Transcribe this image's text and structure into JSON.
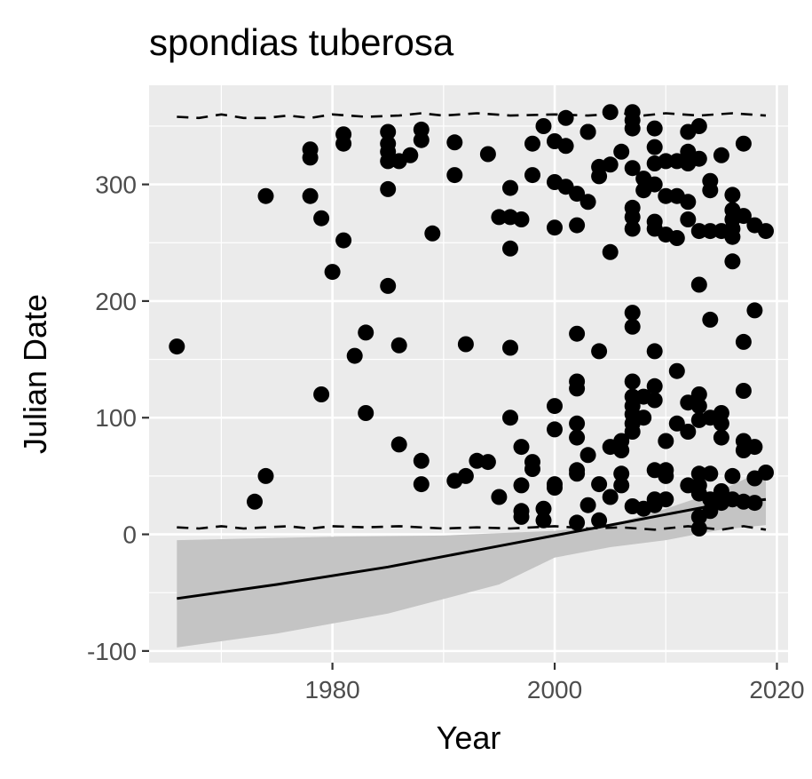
{
  "chart_data": {
    "type": "scatter",
    "title": "spondias tuberosa",
    "xlabel": "Year",
    "ylabel": "Julian Date",
    "xlim": [
      1963.5,
      2021
    ],
    "ylim": [
      -110,
      385
    ],
    "x_ticks": [
      1980,
      2000,
      2020
    ],
    "x_tick_labels": [
      "1980",
      "2000",
      "2020"
    ],
    "y_ticks": [
      -100,
      0,
      100,
      200,
      300
    ],
    "y_tick_labels": [
      "-100",
      "0",
      "100",
      "200",
      "300"
    ],
    "grid": true,
    "colors": {
      "panel": "#ebebeb",
      "grid": "#ffffff",
      "points": "#000000",
      "ribbon": "#c4c4c4",
      "line": "#000000"
    },
    "points": [
      [
        1966,
        161
      ],
      [
        1973,
        28
      ],
      [
        1974,
        50
      ],
      [
        1974,
        290
      ],
      [
        1978,
        323
      ],
      [
        1978,
        330
      ],
      [
        1978,
        290
      ],
      [
        1979,
        271
      ],
      [
        1979,
        120
      ],
      [
        1980,
        225
      ],
      [
        1981,
        252
      ],
      [
        1981,
        335
      ],
      [
        1981,
        343
      ],
      [
        1982,
        153
      ],
      [
        1983,
        173
      ],
      [
        1983,
        104
      ],
      [
        1985,
        345
      ],
      [
        1985,
        335
      ],
      [
        1985,
        328
      ],
      [
        1985,
        320
      ],
      [
        1985,
        296
      ],
      [
        1985,
        213
      ],
      [
        1986,
        320
      ],
      [
        1986,
        162
      ],
      [
        1986,
        77
      ],
      [
        1987,
        325
      ],
      [
        1988,
        347
      ],
      [
        1988,
        338
      ],
      [
        1988,
        63
      ],
      [
        1988,
        43
      ],
      [
        1989,
        258
      ],
      [
        1991,
        336
      ],
      [
        1991,
        308
      ],
      [
        1991,
        46
      ],
      [
        1992,
        163
      ],
      [
        1992,
        50
      ],
      [
        1993,
        63
      ],
      [
        1994,
        62
      ],
      [
        1994,
        326
      ],
      [
        1995,
        272
      ],
      [
        1995,
        32
      ],
      [
        1996,
        297
      ],
      [
        1996,
        272
      ],
      [
        1996,
        245
      ],
      [
        1996,
        160
      ],
      [
        1996,
        100
      ],
      [
        1997,
        270
      ],
      [
        1997,
        75
      ],
      [
        1997,
        42
      ],
      [
        1997,
        20
      ],
      [
        1997,
        15
      ],
      [
        1998,
        335
      ],
      [
        1998,
        308
      ],
      [
        1998,
        62
      ],
      [
        1998,
        56
      ],
      [
        1999,
        350
      ],
      [
        1999,
        22
      ],
      [
        1999,
        12
      ],
      [
        2000,
        337
      ],
      [
        2000,
        302
      ],
      [
        2000,
        263
      ],
      [
        2000,
        110
      ],
      [
        2000,
        90
      ],
      [
        2000,
        43
      ],
      [
        2000,
        40
      ],
      [
        2001,
        357
      ],
      [
        2001,
        333
      ],
      [
        2001,
        298
      ],
      [
        2002,
        292
      ],
      [
        2002,
        265
      ],
      [
        2002,
        172
      ],
      [
        2002,
        131
      ],
      [
        2002,
        125
      ],
      [
        2002,
        95
      ],
      [
        2002,
        83
      ],
      [
        2002,
        55
      ],
      [
        2002,
        52
      ],
      [
        2002,
        10
      ],
      [
        2003,
        345
      ],
      [
        2003,
        345
      ],
      [
        2003,
        285
      ],
      [
        2003,
        68
      ],
      [
        2003,
        25
      ],
      [
        2004,
        315
      ],
      [
        2004,
        307
      ],
      [
        2004,
        157
      ],
      [
        2004,
        43
      ],
      [
        2004,
        12
      ],
      [
        2005,
        362
      ],
      [
        2005,
        317
      ],
      [
        2005,
        242
      ],
      [
        2005,
        75
      ],
      [
        2005,
        32
      ],
      [
        2006,
        328
      ],
      [
        2006,
        80
      ],
      [
        2006,
        72
      ],
      [
        2006,
        52
      ],
      [
        2006,
        42
      ],
      [
        2007,
        362
      ],
      [
        2007,
        355
      ],
      [
        2007,
        348
      ],
      [
        2007,
        314
      ],
      [
        2007,
        280
      ],
      [
        2007,
        272
      ],
      [
        2007,
        262
      ],
      [
        2007,
        190
      ],
      [
        2007,
        178
      ],
      [
        2007,
        131
      ],
      [
        2007,
        118
      ],
      [
        2007,
        110
      ],
      [
        2007,
        103
      ],
      [
        2007,
        95
      ],
      [
        2007,
        88
      ],
      [
        2007,
        24
      ],
      [
        2008,
        305
      ],
      [
        2008,
        295
      ],
      [
        2008,
        118
      ],
      [
        2008,
        100
      ],
      [
        2008,
        22
      ],
      [
        2009,
        348
      ],
      [
        2009,
        332
      ],
      [
        2009,
        318
      ],
      [
        2009,
        300
      ],
      [
        2009,
        268
      ],
      [
        2009,
        262
      ],
      [
        2009,
        157
      ],
      [
        2009,
        127
      ],
      [
        2009,
        115
      ],
      [
        2009,
        55
      ],
      [
        2009,
        30
      ],
      [
        2009,
        25
      ],
      [
        2010,
        320
      ],
      [
        2010,
        290
      ],
      [
        2010,
        257
      ],
      [
        2010,
        80
      ],
      [
        2010,
        55
      ],
      [
        2010,
        50
      ],
      [
        2010,
        30
      ],
      [
        2011,
        320
      ],
      [
        2011,
        290
      ],
      [
        2011,
        254
      ],
      [
        2011,
        140
      ],
      [
        2011,
        95
      ],
      [
        2012,
        345
      ],
      [
        2012,
        328
      ],
      [
        2012,
        318
      ],
      [
        2012,
        285
      ],
      [
        2012,
        270
      ],
      [
        2012,
        113
      ],
      [
        2012,
        88
      ],
      [
        2012,
        42
      ],
      [
        2013,
        350
      ],
      [
        2013,
        322
      ],
      [
        2013,
        260
      ],
      [
        2013,
        214
      ],
      [
        2013,
        120
      ],
      [
        2013,
        110
      ],
      [
        2013,
        98
      ],
      [
        2013,
        52
      ],
      [
        2013,
        42
      ],
      [
        2013,
        35
      ],
      [
        2013,
        15
      ],
      [
        2013,
        5
      ],
      [
        2014,
        303
      ],
      [
        2014,
        295
      ],
      [
        2014,
        260
      ],
      [
        2014,
        184
      ],
      [
        2014,
        100
      ],
      [
        2014,
        52
      ],
      [
        2014,
        30
      ],
      [
        2014,
        20
      ],
      [
        2015,
        325
      ],
      [
        2015,
        260
      ],
      [
        2015,
        104
      ],
      [
        2015,
        95
      ],
      [
        2015,
        83
      ],
      [
        2015,
        37
      ],
      [
        2015,
        27
      ],
      [
        2016,
        291
      ],
      [
        2016,
        278
      ],
      [
        2016,
        270
      ],
      [
        2016,
        262
      ],
      [
        2016,
        255
      ],
      [
        2016,
        234
      ],
      [
        2016,
        50
      ],
      [
        2016,
        30
      ],
      [
        2017,
        335
      ],
      [
        2017,
        273
      ],
      [
        2017,
        165
      ],
      [
        2017,
        123
      ],
      [
        2017,
        80
      ],
      [
        2017,
        72
      ],
      [
        2017,
        28
      ],
      [
        2018,
        265
      ],
      [
        2018,
        192
      ],
      [
        2018,
        75
      ],
      [
        2018,
        48
      ],
      [
        2018,
        27
      ],
      [
        2019,
        260
      ],
      [
        2019,
        53
      ]
    ],
    "trend_line": [
      [
        1966,
        -55
      ],
      [
        1975,
        -43
      ],
      [
        1985,
        -28
      ],
      [
        1995,
        -10
      ],
      [
        2000,
        -1
      ],
      [
        2005,
        8
      ],
      [
        2010,
        17
      ],
      [
        2015,
        26
      ],
      [
        2019,
        30
      ]
    ],
    "confidence_band": {
      "upper": [
        [
          1966,
          -5
        ],
        [
          1980,
          -2
        ],
        [
          1990,
          -1
        ],
        [
          2000,
          3
        ],
        [
          2005,
          8
        ],
        [
          2010,
          22
        ],
        [
          2015,
          38
        ],
        [
          2019,
          56
        ]
      ],
      "lower": [
        [
          1966,
          -97
        ],
        [
          1975,
          -85
        ],
        [
          1985,
          -68
        ],
        [
          1995,
          -43
        ],
        [
          2000,
          -20
        ],
        [
          2005,
          -11
        ],
        [
          2010,
          -5
        ],
        [
          2015,
          4
        ],
        [
          2019,
          8
        ]
      ]
    },
    "quantile_lines": {
      "upper": [
        [
          1966,
          358
        ],
        [
          1968,
          357
        ],
        [
          1970,
          360
        ],
        [
          1972,
          357
        ],
        [
          1974,
          357
        ],
        [
          1976,
          359
        ],
        [
          1978,
          357
        ],
        [
          1980,
          360
        ],
        [
          1983,
          358
        ],
        [
          1986,
          359
        ],
        [
          1988,
          361
        ],
        [
          1990,
          359
        ],
        [
          1993,
          361
        ],
        [
          1996,
          359
        ],
        [
          2000,
          360
        ],
        [
          2003,
          359
        ],
        [
          2006,
          361
        ],
        [
          2008,
          359
        ],
        [
          2010,
          361
        ],
        [
          2013,
          359
        ],
        [
          2016,
          361
        ],
        [
          2019,
          359
        ]
      ],
      "lower": [
        [
          1966,
          6
        ],
        [
          1968,
          5
        ],
        [
          1970,
          7
        ],
        [
          1972,
          5
        ],
        [
          1974,
          6
        ],
        [
          1976,
          7
        ],
        [
          1978,
          5
        ],
        [
          1980,
          7
        ],
        [
          1983,
          6
        ],
        [
          1986,
          7
        ],
        [
          1990,
          5
        ],
        [
          1993,
          6
        ],
        [
          1996,
          5
        ],
        [
          2000,
          7
        ],
        [
          2003,
          5
        ],
        [
          2006,
          6
        ],
        [
          2009,
          4
        ],
        [
          2012,
          7
        ],
        [
          2015,
          4
        ],
        [
          2017,
          7
        ],
        [
          2019,
          4
        ]
      ]
    }
  }
}
